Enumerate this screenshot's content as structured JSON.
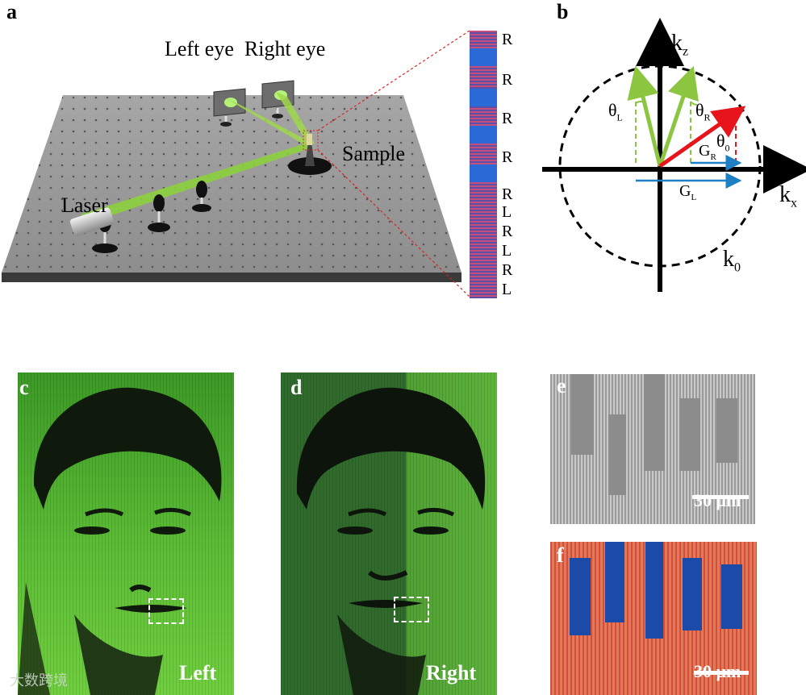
{
  "panels": {
    "a": {
      "letter": "a",
      "eye_labels": "Left eye  Right eye",
      "laser_label": "Laser",
      "sample_label": "Sample",
      "stripe_labels": [
        "R",
        "R",
        "R",
        "R",
        "R",
        "L",
        "R",
        "L",
        "R",
        "L"
      ]
    },
    "b": {
      "letter": "b",
      "kz": "k",
      "kz_sub": "z",
      "kx": "k",
      "kx_sub": "x",
      "k0": "k",
      "k0_sub": "0",
      "theta_L": "θ",
      "theta_L_sub": "L",
      "theta_R": "θ",
      "theta_R_sub": "R",
      "theta_0": "θ",
      "theta_0_sub": "0",
      "G_R": "G",
      "G_R_sub": "R",
      "G_L": "G",
      "G_L_sub": "L",
      "colors": {
        "green": "#8cc640",
        "red": "#e8141c",
        "blue": "#1f7fc4"
      }
    },
    "c": {
      "letter": "c",
      "caption": "Left"
    },
    "d": {
      "letter": "d",
      "caption": "Right"
    },
    "e": {
      "letter": "e",
      "scale": "30 μm"
    },
    "f": {
      "letter": "f",
      "scale": "30 μm"
    }
  },
  "watermark": "大数跨境"
}
